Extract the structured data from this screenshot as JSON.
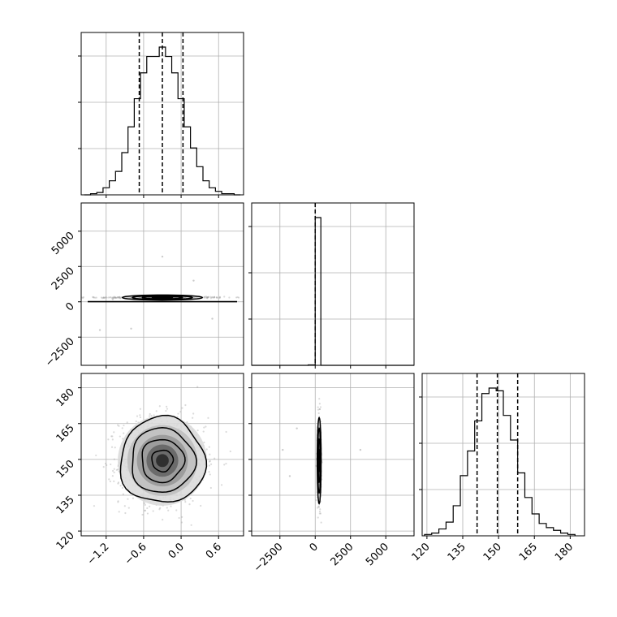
{
  "chart_data": {
    "type": "corner",
    "title": "",
    "parameters": [
      {
        "label": "",
        "range": [
          -1.6,
          1.0
        ],
        "ticks": [
          -1.2,
          -0.6,
          0.0,
          0.6
        ],
        "tick_labels": [
          "−1.2",
          "−0.6",
          "0.0",
          "0.6"
        ],
        "quantiles": [
          -0.67,
          -0.3,
          0.03
        ]
      },
      {
        "label": "",
        "range": [
          -4500,
          7000
        ],
        "ticks": [
          -2500,
          0,
          2500,
          5000
        ],
        "tick_labels": [
          "−2500",
          "0",
          "2500",
          "5000"
        ],
        "quantiles": [
          0
        ]
      },
      {
        "label": "",
        "range": [
          118,
          186
        ],
        "ticks": [
          120,
          135,
          150,
          165,
          180
        ],
        "tick_labels": [
          "120",
          "135",
          "150",
          "165",
          "180"
        ],
        "quantiles": [
          141,
          149.5,
          158
        ]
      }
    ],
    "marginals": [
      {
        "param": 0,
        "bins": [
          -1.55,
          -1.45,
          -1.35,
          -1.25,
          -1.15,
          -1.05,
          -0.95,
          -0.85,
          -0.75,
          -0.65,
          -0.55,
          -0.45,
          -0.35,
          -0.25,
          -0.15,
          -0.05,
          0.05,
          0.15,
          0.25,
          0.35,
          0.45,
          0.55,
          0.65,
          0.75,
          0.85,
          0.95
        ],
        "counts": [
          0,
          1,
          2,
          6,
          12,
          20,
          36,
          58,
          82,
          104,
          118,
          118,
          126,
          118,
          104,
          82,
          58,
          40,
          24,
          12,
          6,
          3,
          1,
          1,
          0
        ]
      },
      {
        "param": 1,
        "bins": [
          -4500,
          -2500,
          -500,
          0,
          400,
          2500,
          7000
        ],
        "counts": [
          0,
          0,
          0.3,
          100,
          0,
          0
        ]
      },
      {
        "param": 2,
        "bins": [
          119,
          122,
          125,
          128,
          131,
          134,
          137,
          140,
          143,
          146,
          149,
          152,
          155,
          158,
          161,
          164,
          167,
          170,
          173,
          176,
          179,
          182
        ],
        "counts": [
          1,
          2,
          5,
          10,
          22,
          44,
          62,
          84,
          104,
          108,
          106,
          88,
          70,
          46,
          28,
          16,
          9,
          6,
          4,
          2,
          1
        ]
      }
    ],
    "joint": [
      {
        "x_param": 0,
        "y_param": 1,
        "center": [
          -0.3,
          300
        ],
        "sigma": [
          0.32,
          90
        ],
        "outliers": [
          [
            -0.3,
            3200
          ],
          [
            0.2,
            1500
          ],
          [
            -0.8,
            -1900
          ],
          [
            -1.3,
            -2000
          ],
          [
            0.5,
            -1200
          ]
        ]
      },
      {
        "x_param": 0,
        "y_param": 2,
        "center": [
          -0.3,
          149.5
        ],
        "sigma": [
          0.34,
          9
        ],
        "outliers": []
      },
      {
        "x_param": 1,
        "y_param": 2,
        "center": [
          280,
          149.5
        ],
        "sigma": [
          70,
          9
        ],
        "outliers": [
          [
            -1300,
            163
          ],
          [
            3200,
            154
          ],
          [
            -2300,
            154
          ],
          [
            -1800,
            143
          ]
        ]
      }
    ],
    "contour_levels": [
      0.5,
      1.0,
      1.5,
      2.0
    ],
    "grid": true,
    "legend": "none"
  }
}
